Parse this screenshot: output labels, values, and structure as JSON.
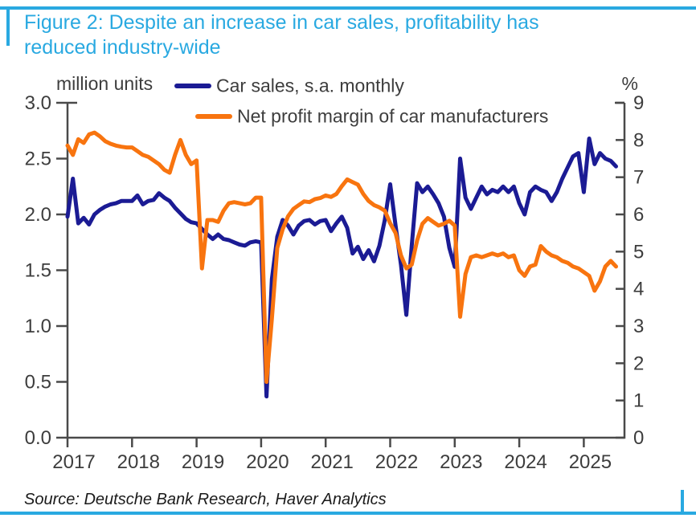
{
  "header": {
    "title_line1": "Figure 2: Despite an increase in car sales, profitability has",
    "title_line2": "reduced industry-wide"
  },
  "footer": {
    "source": "Source: Deutsche Bank Research, Haver Analytics"
  },
  "colors": {
    "accent_blue": "#29a9e1",
    "car_sales_navy": "#1b1b94",
    "profit_margin_orange": "#f8740f",
    "axis_gray": "#4a4a4a",
    "text_gray": "#3d3d3d"
  },
  "chart_data": {
    "type": "line",
    "title": "Figure 2: Despite an increase in car sales, profitability has reduced industry-wide",
    "x_start_year": 2017,
    "x_step_months": 1,
    "x_ticks": [
      2017,
      2018,
      2019,
      2020,
      2021,
      2022,
      2023,
      2024,
      2025
    ],
    "grid": false,
    "legend_position": "top",
    "left_axis": {
      "label": "million units",
      "min": 0,
      "max": 3,
      "ticks": [
        "0.0",
        "0.5",
        "1.0",
        "1.5",
        "2.0",
        "2.5",
        "3.0"
      ]
    },
    "right_axis": {
      "label": "%",
      "min": 0,
      "max": 9,
      "ticks": [
        "0",
        "1",
        "2",
        "3",
        "4",
        "5",
        "6",
        "7",
        "8",
        "9"
      ]
    },
    "series": [
      {
        "name": "Car sales, s.a. monthly",
        "axis": "left",
        "color": "#1b1b94",
        "values": [
          1.98,
          2.32,
          1.92,
          1.97,
          1.91,
          2.0,
          2.04,
          2.07,
          2.09,
          2.1,
          2.12,
          2.12,
          2.12,
          2.17,
          2.09,
          2.12,
          2.13,
          2.19,
          2.15,
          2.12,
          2.06,
          2.01,
          1.96,
          1.93,
          1.92,
          1.87,
          1.82,
          1.78,
          1.82,
          1.78,
          1.77,
          1.75,
          1.73,
          1.72,
          1.75,
          1.76,
          1.75,
          0.37,
          1.42,
          1.8,
          1.95,
          1.9,
          1.82,
          1.9,
          1.94,
          1.95,
          1.91,
          1.94,
          1.95,
          1.85,
          1.92,
          1.98,
          1.88,
          1.65,
          1.71,
          1.6,
          1.68,
          1.58,
          1.72,
          1.95,
          2.27,
          1.9,
          1.55,
          1.1,
          1.72,
          2.28,
          2.2,
          2.25,
          2.18,
          2.1,
          1.98,
          1.7,
          1.53,
          2.5,
          2.15,
          2.05,
          2.15,
          2.25,
          2.18,
          2.22,
          2.2,
          2.25,
          2.2,
          2.25,
          2.1,
          2.0,
          2.2,
          2.25,
          2.22,
          2.2,
          2.12,
          2.2,
          2.32,
          2.42,
          2.52,
          2.55,
          2.2,
          2.68,
          2.45,
          2.55,
          2.5,
          2.48,
          2.43
        ]
      },
      {
        "name": "Net profit margin of car manufacturers",
        "axis": "right",
        "color": "#f8740f",
        "values": [
          7.85,
          7.6,
          8.02,
          7.92,
          8.15,
          8.2,
          8.1,
          7.97,
          7.9,
          7.85,
          7.82,
          7.8,
          7.8,
          7.7,
          7.6,
          7.55,
          7.45,
          7.35,
          7.2,
          7.12,
          7.6,
          8.0,
          7.6,
          7.35,
          7.45,
          4.55,
          5.85,
          5.85,
          5.8,
          6.1,
          6.3,
          6.33,
          6.3,
          6.27,
          6.3,
          6.45,
          6.45,
          1.5,
          3.2,
          5.1,
          5.6,
          5.95,
          6.15,
          6.25,
          6.35,
          6.33,
          6.41,
          6.44,
          6.51,
          6.47,
          6.55,
          6.76,
          6.94,
          6.87,
          6.8,
          6.55,
          6.36,
          6.25,
          6.19,
          6.1,
          5.76,
          5.5,
          4.9,
          4.55,
          4.65,
          5.3,
          5.75,
          5.9,
          5.8,
          5.7,
          5.75,
          5.83,
          5.7,
          3.25,
          4.4,
          4.85,
          4.9,
          4.85,
          4.9,
          4.95,
          4.9,
          4.95,
          4.85,
          4.9,
          4.5,
          4.35,
          4.6,
          4.65,
          5.15,
          5.0,
          4.9,
          4.85,
          4.75,
          4.7,
          4.6,
          4.55,
          4.45,
          4.35,
          3.95,
          4.2,
          4.6,
          4.75,
          4.6
        ]
      }
    ]
  }
}
